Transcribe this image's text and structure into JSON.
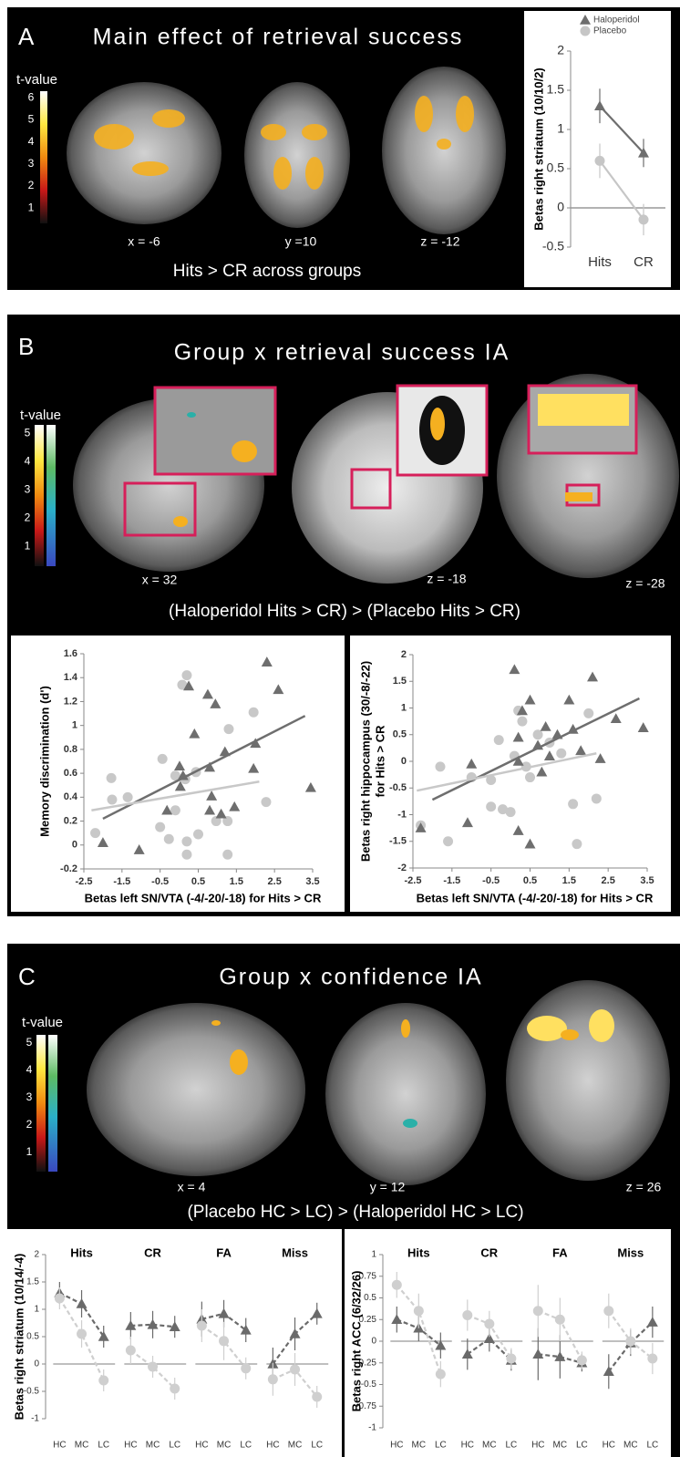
{
  "panels": [
    {
      "letter": "A",
      "title": "Main effect of retrieval success",
      "colorbar": {
        "title": "t-value",
        "ticks": [
          6,
          5,
          4,
          3,
          2,
          1
        ]
      },
      "slice_labels": [
        "x = -6",
        "y =10",
        "z = -12"
      ],
      "subtitle": "Hits > CR across groups"
    },
    {
      "letter": "B",
      "title": "Group x retrieval success IA",
      "colorbar": {
        "title": "t-value",
        "ticks": [
          5,
          4,
          3,
          2,
          1
        ]
      },
      "slice_labels": [
        "x = 32",
        "z = -18",
        "z = -28"
      ],
      "subtitle": "(Haloperidol Hits > CR) > (Placebo Hits > CR)"
    },
    {
      "letter": "C",
      "title": "Group x confidence IA",
      "colorbar": {
        "title": "t-value",
        "ticks": [
          5,
          4,
          3,
          2,
          1
        ]
      },
      "slice_labels": [
        "x = 4",
        "y = 12",
        "z = 26"
      ],
      "subtitle": "(Placebo HC > LC) > (Haloperidol  HC > LC)"
    }
  ],
  "chart_data": [
    {
      "type": "line",
      "categories": [
        "Hits",
        "CR"
      ],
      "ylim": [
        -0.5,
        2
      ],
      "yticks": [
        -0.5,
        0,
        0.5,
        1,
        1.5,
        2
      ],
      "y_label": [
        "Betas right striatum (10/10/2)"
      ],
      "legend": "top",
      "series": [
        {
          "name": "Haloperidol",
          "color": "#6e6e6e",
          "marker": "triangle",
          "values": [
            1.3,
            0.7
          ],
          "errors": [
            0.22,
            0.18
          ]
        },
        {
          "name": "Placebo",
          "color": "#c6c6c6",
          "marker": "circle",
          "values": [
            0.6,
            -0.15
          ],
          "errors": [
            0.22,
            0.2
          ]
        }
      ]
    },
    {
      "type": "scatter",
      "xlim": [
        -2.5,
        3.5
      ],
      "xticks": [
        -2.5,
        -1.5,
        -0.5,
        0.5,
        1.5,
        2.5,
        3.5
      ],
      "ylim": [
        -0.2,
        1.6
      ],
      "yticks": [
        -0.2,
        0,
        0.2,
        0.4,
        0.6,
        0.8,
        1,
        1.2,
        1.4,
        1.6
      ],
      "x_label": "Betas left SN/VTA (-4/-20/-18) for Hits > CR",
      "y_label": [
        "Memory discrimination (d')"
      ],
      "series": [
        {
          "color": "#6e6e6e",
          "marker": "triangle",
          "x": [
            2.3,
            2.6,
            0.25,
            0.75,
            0.95,
            0.4,
            0.01,
            0.03,
            0.1,
            0.8,
            1.2,
            2.0,
            1.95,
            0.85,
            0.8,
            -0.32,
            1.1,
            1.45,
            3.45,
            -2.0,
            -1.05
          ],
          "y": [
            1.53,
            1.3,
            1.33,
            1.26,
            1.18,
            0.93,
            0.66,
            0.49,
            0.58,
            0.65,
            0.78,
            0.85,
            0.64,
            0.41,
            0.29,
            0.29,
            0.26,
            0.32,
            0.48,
            0.02,
            -0.04
          ],
          "fit": {
            "x": [
              -2,
              3.3
            ],
            "y": [
              0.22,
              1.08
            ]
          }
        },
        {
          "color": "#c8c8c8",
          "marker": "circle",
          "x": [
            0.2,
            0.08,
            1.95,
            1.3,
            -1.78,
            -0.44,
            -0.1,
            0.44,
            0.16,
            -0.1,
            -1.35,
            -1.76,
            -0.5,
            0.2,
            0.5,
            0.97,
            1.27,
            1.27,
            2.28,
            -2.2,
            0.2,
            -0.27
          ],
          "y": [
            1.42,
            1.34,
            1.11,
            0.97,
            0.56,
            0.72,
            0.58,
            0.61,
            0.55,
            0.29,
            0.4,
            0.38,
            0.15,
            0.03,
            0.09,
            0.2,
            0.2,
            -0.08,
            0.36,
            0.1,
            -0.08,
            0.05
          ],
          "fit": {
            "x": [
              -2.3,
              2.1
            ],
            "y": [
              0.29,
              0.53
            ]
          }
        }
      ]
    },
    {
      "type": "scatter",
      "xlim": [
        -2.5,
        3.5
      ],
      "xticks": [
        -2.5,
        -1.5,
        -0.5,
        0.5,
        1.5,
        2.5,
        3.5
      ],
      "ylim": [
        -2,
        2
      ],
      "yticks": [
        -2,
        -1.5,
        -1,
        -0.5,
        0,
        0.5,
        1,
        1.5,
        2
      ],
      "x_label": "Betas left SN/VTA (-4/-20/-18) for Hits > CR",
      "y_label": [
        "Betas right hippocampus (30/-8/-22)",
        "for Hits > CR"
      ],
      "series": [
        {
          "color": "#6e6e6e",
          "marker": "triangle",
          "x": [
            -2.3,
            -1.1,
            -1,
            0.1,
            0.2,
            0.3,
            0.5,
            0.7,
            0.9,
            1,
            1.2,
            1.5,
            1.6,
            1.8,
            2.1,
            2.3,
            2.7,
            3.4,
            0.2,
            0.5,
            0.8,
            0.2
          ],
          "y": [
            -1.25,
            -1.15,
            -0.05,
            1.72,
            0.45,
            0.95,
            1.15,
            0.3,
            0.65,
            0.1,
            0.5,
            1.15,
            0.6,
            0.2,
            1.58,
            0.05,
            0.8,
            0.63,
            -1.3,
            -1.55,
            -0.2,
            0.0
          ],
          "fit": {
            "x": [
              -2,
              3.3
            ],
            "y": [
              -0.72,
              1.18
            ]
          }
        },
        {
          "color": "#c8c8c8",
          "marker": "circle",
          "x": [
            -2.3,
            -1.8,
            -1.6,
            -1,
            -0.5,
            -0.3,
            -0.2,
            0,
            0.2,
            0.3,
            0.4,
            0.5,
            0.7,
            1,
            1.3,
            1.6,
            1.7,
            2,
            2.2,
            -0.5,
            0.1
          ],
          "y": [
            -1.2,
            -0.1,
            -1.5,
            -0.3,
            -0.35,
            0.4,
            -0.9,
            -0.95,
            0.95,
            0.75,
            -0.1,
            -0.3,
            0.5,
            0.35,
            0.15,
            -0.8,
            -1.55,
            0.9,
            -0.7,
            -0.85,
            0.1
          ],
          "fit": {
            "x": [
              -2.4,
              2.2
            ],
            "y": [
              -0.55,
              0.15
            ]
          }
        }
      ]
    },
    {
      "type": "line",
      "ylim": [
        -1,
        2
      ],
      "yticks": [
        -1,
        -0.5,
        0,
        0.5,
        1,
        1.5,
        2
      ],
      "y_label": [
        "Betas right striatum (10/14/-4)"
      ],
      "line_style": "dashed",
      "groups": [
        {
          "name": "Hits",
          "categories": [
            "HC",
            "MC",
            "LC"
          ],
          "series": [
            {
              "color": "#6a6a6a",
              "marker": "triangle",
              "values": [
                1.3,
                1.1,
                0.5
              ],
              "errors": [
                0.2,
                0.25,
                0.2
              ]
            },
            {
              "color": "#cfcfcf",
              "marker": "circle",
              "values": [
                1.2,
                0.55,
                -0.3
              ],
              "errors": [
                0.2,
                0.25,
                0.2
              ]
            }
          ]
        },
        {
          "name": "CR",
          "categories": [
            "HC",
            "MC",
            "LC"
          ],
          "series": [
            {
              "color": "#6a6a6a",
              "marker": "triangle",
              "values": [
                0.7,
                0.72,
                0.68
              ],
              "errors": [
                0.25,
                0.25,
                0.2
              ]
            },
            {
              "color": "#cfcfcf",
              "marker": "circle",
              "values": [
                0.25,
                -0.05,
                -0.45
              ],
              "errors": [
                0.25,
                0.2,
                0.2
              ]
            }
          ]
        },
        {
          "name": "FA",
          "categories": [
            "HC",
            "MC",
            "LC"
          ],
          "series": [
            {
              "color": "#6a6a6a",
              "marker": "triangle",
              "values": [
                0.82,
                0.92,
                0.62
              ],
              "errors": [
                0.32,
                0.25,
                0.22
              ]
            },
            {
              "color": "#cfcfcf",
              "marker": "circle",
              "values": [
                0.7,
                0.42,
                -0.08
              ],
              "errors": [
                0.3,
                0.35,
                0.2
              ]
            }
          ]
        },
        {
          "name": "Miss",
          "categories": [
            "HC",
            "MC",
            "LC"
          ],
          "series": [
            {
              "color": "#6a6a6a",
              "marker": "triangle",
              "values": [
                0,
                0.55,
                0.92
              ],
              "errors": [
                0.3,
                0.3,
                0.2
              ]
            },
            {
              "color": "#cfcfcf",
              "marker": "circle",
              "values": [
                -0.28,
                -0.1,
                -0.6
              ],
              "errors": [
                0.3,
                0.3,
                0.2
              ]
            }
          ]
        }
      ]
    },
    {
      "type": "line",
      "ylim": [
        -1,
        1
      ],
      "yticks": [
        -1,
        -0.75,
        -0.5,
        -0.25,
        0,
        0.25,
        0.5,
        0.75,
        1
      ],
      "y_label": [
        "Betas right ACC (6/32/26)"
      ],
      "line_style": "dashed",
      "groups": [
        {
          "name": "Hits",
          "categories": [
            "HC",
            "MC",
            "LC"
          ],
          "series": [
            {
              "color": "#6a6a6a",
              "marker": "triangle",
              "values": [
                0.25,
                0.15,
                -0.05
              ],
              "errors": [
                0.15,
                0.15,
                0.15
              ]
            },
            {
              "color": "#cfcfcf",
              "marker": "circle",
              "values": [
                0.65,
                0.35,
                -0.38
              ],
              "errors": [
                0.15,
                0.2,
                0.15
              ]
            }
          ]
        },
        {
          "name": "CR",
          "categories": [
            "HC",
            "MC",
            "LC"
          ],
          "series": [
            {
              "color": "#6a6a6a",
              "marker": "triangle",
              "values": [
                -0.15,
                0.03,
                -0.22
              ],
              "errors": [
                0.18,
                0.15,
                0.12
              ]
            },
            {
              "color": "#cfcfcf",
              "marker": "circle",
              "values": [
                0.3,
                0.2,
                -0.2
              ],
              "errors": [
                0.18,
                0.15,
                0.12
              ]
            }
          ]
        },
        {
          "name": "FA",
          "categories": [
            "HC",
            "MC",
            "LC"
          ],
          "series": [
            {
              "color": "#6a6a6a",
              "marker": "triangle",
              "values": [
                -0.15,
                -0.18,
                -0.25
              ],
              "errors": [
                0.3,
                0.25,
                0.1
              ]
            },
            {
              "color": "#cfcfcf",
              "marker": "circle",
              "values": [
                0.35,
                0.25,
                -0.22
              ],
              "errors": [
                0.3,
                0.25,
                0.1
              ]
            }
          ]
        },
        {
          "name": "Miss",
          "categories": [
            "HC",
            "MC",
            "LC"
          ],
          "series": [
            {
              "color": "#6a6a6a",
              "marker": "triangle",
              "values": [
                -0.35,
                -0.02,
                0.22
              ],
              "errors": [
                0.2,
                0.15,
                0.18
              ]
            },
            {
              "color": "#cfcfcf",
              "marker": "circle",
              "values": [
                0.35,
                0.0,
                -0.2
              ],
              "errors": [
                0.2,
                0.15,
                0.18
              ]
            }
          ]
        }
      ]
    }
  ]
}
